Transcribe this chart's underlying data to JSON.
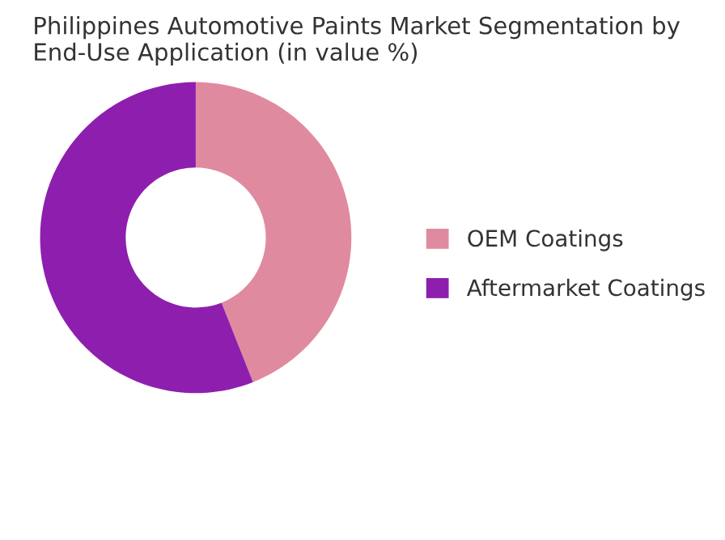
{
  "chart_data": {
    "type": "donut",
    "title": "Philippines Automotive Paints Market Segmentation by End-Use Application (in value %)",
    "categories": [
      "OEM Coatings",
      "Aftermarket Coatings"
    ],
    "values": [
      44,
      56
    ],
    "colors": [
      "#e08aa0",
      "#8e1fae"
    ],
    "legend": "right"
  }
}
